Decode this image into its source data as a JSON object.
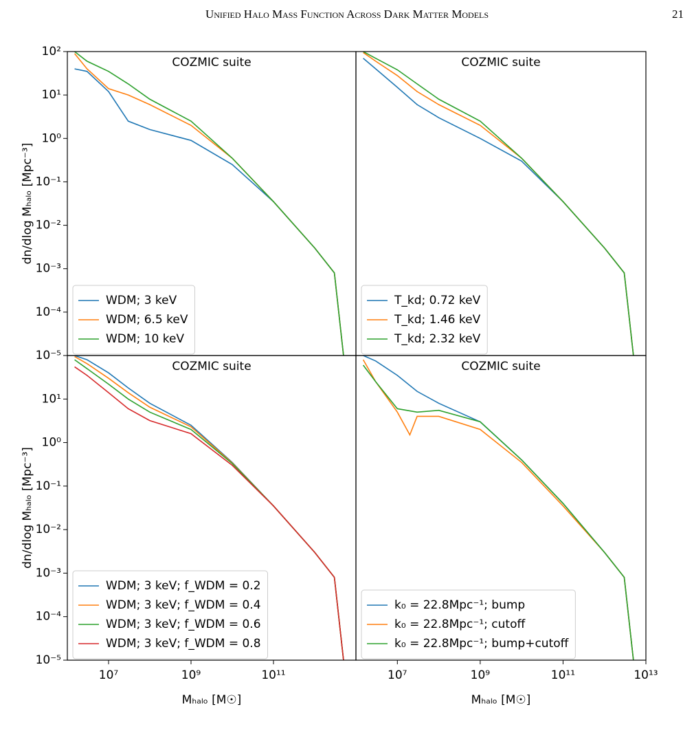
{
  "header": {
    "title": "Unified Halo Mass Function Across Dark Matter Models",
    "page": "21"
  },
  "chart_data": [
    {
      "type": "line",
      "annotation": "COZMIC suite",
      "log_x": true,
      "log_y": true,
      "legend": "lower left",
      "xlim": [
        1000000,
        10000000000000
      ],
      "ylim": [
        1e-05,
        100
      ],
      "yticks": [
        {
          "value": 100,
          "label": "10²"
        },
        {
          "value": 10,
          "label": "10¹"
        },
        {
          "value": 1,
          "label": "10⁰"
        },
        {
          "value": 0.1,
          "label": "10⁻¹"
        },
        {
          "value": 0.01,
          "label": "10⁻²"
        },
        {
          "value": 0.001,
          "label": "10⁻³"
        },
        {
          "value": 0.0001,
          "label": "10⁻⁴"
        },
        {
          "value": 1e-05,
          "label": "10⁻⁵"
        }
      ],
      "ylabel": "dn/dlog Mₕₐₗₒ [Mpc⁻³]",
      "series": [
        {
          "name": "WDM; 3 keV",
          "color": "#1f77b4",
          "x": [
            1500000,
            3000000,
            10000000,
            30000000,
            100000000,
            1000000000,
            10000000000,
            100000000000,
            1000000000000,
            3000000000000,
            5000000000000
          ],
          "values": [
            40,
            35,
            12,
            2.5,
            1.6,
            0.9,
            0.25,
            0.035,
            0.003,
            0.0008,
            1e-05
          ]
        },
        {
          "name": "WDM; 6.5 keV",
          "color": "#ff7f0e",
          "x": [
            1500000,
            3000000,
            10000000,
            30000000,
            100000000,
            1000000000,
            10000000000,
            100000000000,
            1000000000000,
            3000000000000,
            5000000000000
          ],
          "values": [
            90,
            40,
            14,
            10,
            6,
            2,
            0.35,
            0.035,
            0.003,
            0.0008,
            1e-05
          ]
        },
        {
          "name": "WDM; 10 keV",
          "color": "#2ca02c",
          "x": [
            1500000,
            3000000,
            10000000,
            30000000,
            100000000,
            1000000000,
            10000000000,
            100000000000,
            1000000000000,
            3000000000000,
            5000000000000
          ],
          "values": [
            100,
            60,
            35,
            18,
            8,
            2.5,
            0.35,
            0.035,
            0.003,
            0.0008,
            1e-05
          ]
        }
      ]
    },
    {
      "type": "line",
      "annotation": "COZMIC suite",
      "log_x": true,
      "log_y": true,
      "legend": "lower left",
      "xlim": [
        1000000,
        10000000000000
      ],
      "ylim": [
        1e-05,
        100
      ],
      "series": [
        {
          "name": "T_kd; 0.72 keV",
          "color": "#1f77b4",
          "x": [
            1500000,
            3000000,
            10000000,
            30000000,
            100000000,
            1000000000,
            10000000000,
            100000000000,
            1000000000000,
            3000000000000,
            5000000000000
          ],
          "values": [
            70,
            40,
            15,
            6,
            3,
            1,
            0.3,
            0.035,
            0.003,
            0.0008,
            1e-05
          ]
        },
        {
          "name": "T_kd; 1.46 keV",
          "color": "#ff7f0e",
          "x": [
            1500000,
            3000000,
            10000000,
            30000000,
            100000000,
            1000000000,
            10000000000,
            100000000000,
            1000000000000,
            3000000000000,
            5000000000000
          ],
          "values": [
            95,
            60,
            28,
            12,
            6,
            2,
            0.35,
            0.035,
            0.003,
            0.0008,
            1e-05
          ]
        },
        {
          "name": "T_kd; 2.32 keV",
          "color": "#2ca02c",
          "x": [
            1500000,
            3000000,
            10000000,
            30000000,
            100000000,
            1000000000,
            10000000000,
            100000000000,
            1000000000000,
            3000000000000,
            5000000000000
          ],
          "values": [
            100,
            70,
            38,
            18,
            8,
            2.5,
            0.35,
            0.035,
            0.003,
            0.0008,
            1e-05
          ]
        }
      ]
    },
    {
      "type": "line",
      "annotation": "COZMIC suite",
      "log_x": true,
      "log_y": true,
      "legend": "lower left",
      "xlim": [
        1000000,
        10000000000000
      ],
      "ylim": [
        1e-05,
        100
      ],
      "xticks": [
        {
          "value": 10000000,
          "label": "10⁷"
        },
        {
          "value": 1000000000,
          "label": "10⁹"
        },
        {
          "value": 100000000000,
          "label": "10¹¹"
        }
      ],
      "yticks": [
        {
          "value": 10,
          "label": "10¹"
        },
        {
          "value": 1,
          "label": "10⁰"
        },
        {
          "value": 0.1,
          "label": "10⁻¹"
        },
        {
          "value": 0.01,
          "label": "10⁻²"
        },
        {
          "value": 0.001,
          "label": "10⁻³"
        },
        {
          "value": 0.0001,
          "label": "10⁻⁴"
        },
        {
          "value": 1e-05,
          "label": "10⁻⁵"
        }
      ],
      "xlabel": "Mₕₐₗₒ [M☉]",
      "ylabel": "dn/dlog Mₕₐₗₒ [Mpc⁻³]",
      "series": [
        {
          "name": "WDM; 3 keV; f_WDM = 0.2",
          "color": "#1f77b4",
          "x": [
            1500000,
            3000000,
            10000000,
            30000000,
            100000000,
            1000000000,
            10000000000,
            100000000000,
            1000000000000,
            3000000000000,
            5000000000000
          ],
          "values": [
            100,
            80,
            40,
            18,
            8,
            2.5,
            0.35,
            0.035,
            0.003,
            0.0008,
            1e-05
          ]
        },
        {
          "name": "WDM; 3 keV; f_WDM = 0.4",
          "color": "#ff7f0e",
          "x": [
            1500000,
            3000000,
            10000000,
            30000000,
            100000000,
            1000000000,
            10000000000,
            100000000000,
            1000000000000,
            3000000000000,
            5000000000000
          ],
          "values": [
            95,
            65,
            30,
            14,
            6.5,
            2.3,
            0.34,
            0.035,
            0.003,
            0.0008,
            1e-05
          ]
        },
        {
          "name": "WDM; 3 keV; f_WDM = 0.6",
          "color": "#2ca02c",
          "x": [
            1500000,
            3000000,
            10000000,
            30000000,
            100000000,
            1000000000,
            10000000000,
            100000000000,
            1000000000000,
            3000000000000,
            5000000000000
          ],
          "values": [
            80,
            50,
            22,
            10,
            5,
            2,
            0.33,
            0.035,
            0.003,
            0.0008,
            1e-05
          ]
        },
        {
          "name": "WDM; 3 keV; f_WDM = 0.8",
          "color": "#d62728",
          "x": [
            1500000,
            3000000,
            10000000,
            30000000,
            100000000,
            1000000000,
            10000000000,
            100000000000,
            1000000000000,
            3000000000000,
            5000000000000
          ],
          "values": [
            55,
            35,
            14,
            6,
            3.2,
            1.6,
            0.3,
            0.035,
            0.003,
            0.0008,
            1e-05
          ]
        }
      ]
    },
    {
      "type": "line",
      "annotation": "COZMIC suite",
      "log_x": true,
      "log_y": true,
      "legend": "lower left",
      "xlim": [
        1000000,
        10000000000000
      ],
      "ylim": [
        1e-05,
        100
      ],
      "xticks": [
        {
          "value": 10000000,
          "label": "10⁷"
        },
        {
          "value": 1000000000,
          "label": "10⁹"
        },
        {
          "value": 100000000000,
          "label": "10¹¹"
        },
        {
          "value": 10000000000000,
          "label": "10¹³"
        }
      ],
      "xlabel": "Mₕₐₗₒ [M☉]",
      "series": [
        {
          "name": "k₀ = 22.8Mpc⁻¹; bump",
          "color": "#1f77b4",
          "x": [
            1500000,
            3000000,
            10000000,
            30000000,
            100000000,
            1000000000,
            10000000000,
            100000000000,
            1000000000000,
            3000000000000,
            5000000000000
          ],
          "values": [
            100,
            75,
            35,
            15,
            8,
            3,
            0.4,
            0.04,
            0.003,
            0.0008,
            1e-05
          ]
        },
        {
          "name": "k₀ = 22.8Mpc⁻¹; cutoff",
          "color": "#ff7f0e",
          "x": [
            1500000,
            3000000,
            10000000,
            20000000,
            30000000,
            100000000,
            1000000000,
            10000000000,
            100000000000,
            1000000000000,
            3000000000000,
            5000000000000
          ],
          "values": [
            80,
            25,
            5,
            1.5,
            4,
            4,
            2,
            0.35,
            0.035,
            0.003,
            0.0008,
            1e-05
          ]
        },
        {
          "name": "k₀ = 22.8Mpc⁻¹; bump+cutoff",
          "color": "#2ca02c",
          "x": [
            1500000,
            3000000,
            10000000,
            30000000,
            100000000,
            1000000000,
            10000000000,
            100000000000,
            1000000000000,
            3000000000000,
            5000000000000
          ],
          "values": [
            60,
            25,
            6,
            5,
            5.5,
            3,
            0.4,
            0.04,
            0.003,
            0.0008,
            1e-05
          ]
        }
      ]
    }
  ]
}
